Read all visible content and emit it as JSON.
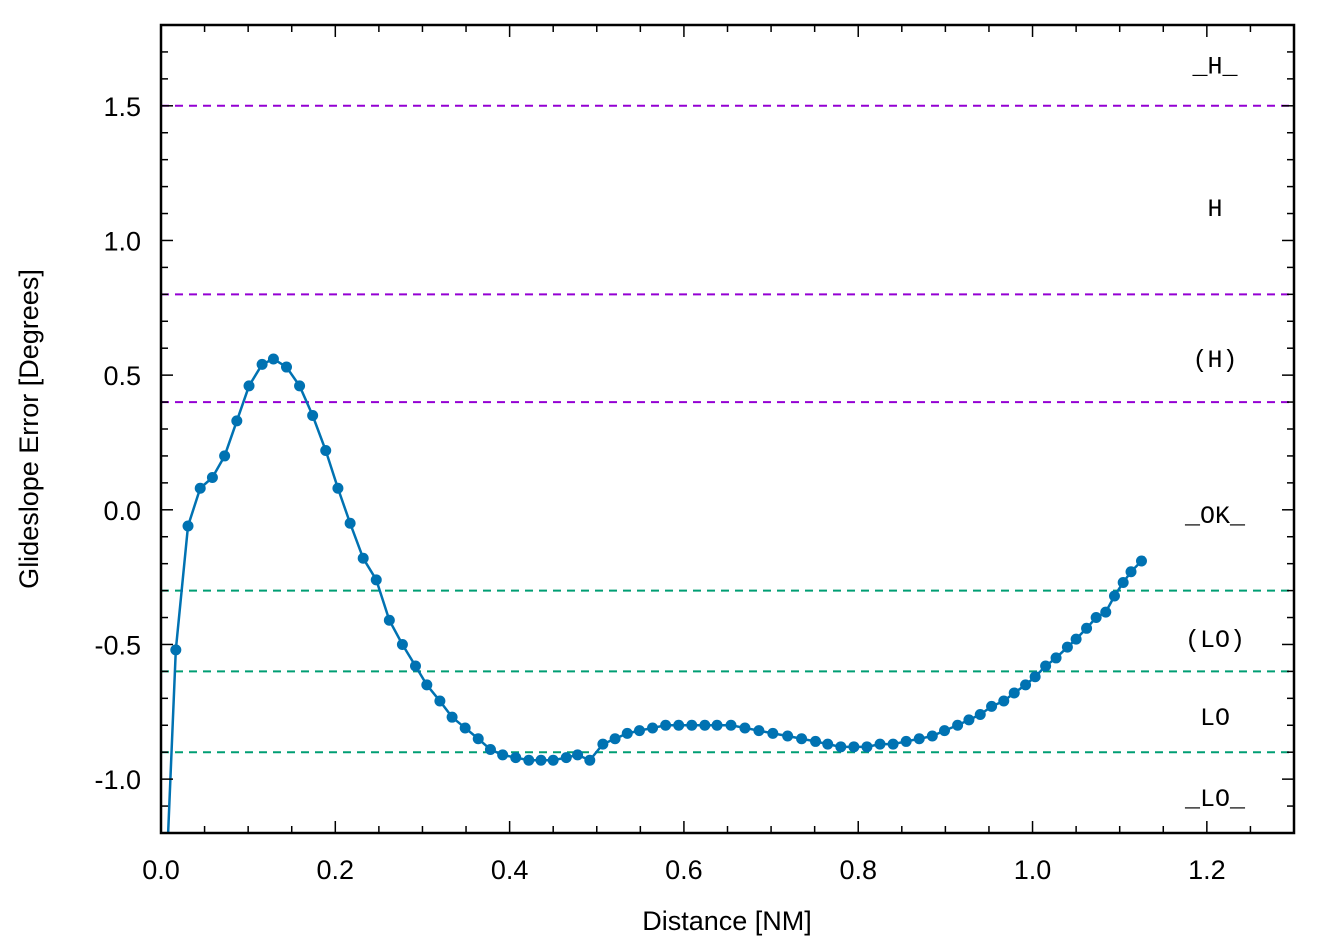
{
  "chart_data": {
    "type": "line",
    "title": "",
    "xlabel": "Distance [NM]",
    "ylabel": "Glideslope Error [Degrees]",
    "xlim": [
      0,
      1.3
    ],
    "ylim": [
      -1.2,
      1.8
    ],
    "xticks": [
      0.0,
      0.2,
      0.4,
      0.6,
      0.8,
      1.0,
      1.2
    ],
    "xtick_labels": [
      "0.0",
      "0.2",
      "0.4",
      "0.6",
      "0.8",
      "1.0",
      "1.2"
    ],
    "yticks": [
      -1.0,
      -0.5,
      0.0,
      0.5,
      1.0,
      1.5
    ],
    "ytick_labels": [
      "-1.0",
      "-0.5",
      "0.0",
      "0.5",
      "1.0",
      "1.5"
    ],
    "grid": false,
    "markers": true,
    "series_color": "#0072b2",
    "thresholds": [
      {
        "y": 1.5,
        "color": "#9400d3"
      },
      {
        "y": 0.8,
        "color": "#9400d3"
      },
      {
        "y": 0.4,
        "color": "#9400d3"
      },
      {
        "y": -0.3,
        "color": "#009e73"
      },
      {
        "y": -0.6,
        "color": "#009e73"
      },
      {
        "y": -0.9,
        "color": "#009e73"
      }
    ],
    "zone_labels": [
      {
        "text": "_H_",
        "y": 1.65
      },
      {
        "text": "H",
        "y": 1.12
      },
      {
        "text": "(H)",
        "y": 0.56
      },
      {
        "text": "_OK_",
        "y": -0.02
      },
      {
        "text": "(LO)",
        "y": -0.48
      },
      {
        "text": "LO",
        "y": -0.77
      },
      {
        "text": "_LO_",
        "y": -1.07
      }
    ],
    "series": [
      {
        "x": [
          0.003,
          0.017,
          0.031,
          0.045,
          0.059,
          0.073,
          0.087,
          0.101,
          0.116,
          0.129,
          0.144,
          0.159,
          0.174,
          0.189,
          0.203,
          0.217,
          0.232,
          0.247,
          0.262,
          0.277,
          0.292,
          0.305,
          0.32,
          0.334,
          0.349,
          0.364,
          0.378,
          0.392,
          0.407,
          0.422,
          0.436,
          0.45,
          0.465,
          0.478,
          0.492,
          0.507,
          0.521,
          0.535,
          0.549,
          0.564,
          0.579,
          0.594,
          0.609,
          0.624,
          0.638,
          0.654,
          0.67,
          0.686,
          0.702,
          0.719,
          0.735,
          0.751,
          0.765,
          0.78,
          0.795,
          0.81,
          0.825,
          0.84,
          0.855,
          0.87,
          0.885,
          0.899,
          0.914,
          0.927,
          0.94,
          0.953,
          0.967,
          0.979,
          0.992,
          1.003,
          1.015,
          1.027,
          1.04,
          1.05,
          1.062,
          1.073,
          1.084,
          1.094,
          1.104,
          1.113,
          1.125
        ],
        "y": [
          -1.6,
          -0.52,
          -0.06,
          0.08,
          0.12,
          0.2,
          0.33,
          0.46,
          0.54,
          0.56,
          0.53,
          0.46,
          0.35,
          0.22,
          0.08,
          -0.05,
          -0.18,
          -0.26,
          -0.41,
          -0.5,
          -0.58,
          -0.65,
          -0.71,
          -0.77,
          -0.81,
          -0.85,
          -0.89,
          -0.91,
          -0.92,
          -0.93,
          -0.93,
          -0.93,
          -0.92,
          -0.91,
          -0.93,
          -0.87,
          -0.85,
          -0.83,
          -0.82,
          -0.81,
          -0.8,
          -0.8,
          -0.8,
          -0.8,
          -0.8,
          -0.8,
          -0.81,
          -0.82,
          -0.83,
          -0.84,
          -0.85,
          -0.86,
          -0.87,
          -0.88,
          -0.88,
          -0.88,
          -0.87,
          -0.87,
          -0.86,
          -0.85,
          -0.84,
          -0.82,
          -0.8,
          -0.78,
          -0.76,
          -0.73,
          -0.71,
          -0.68,
          -0.65,
          -0.62,
          -0.58,
          -0.55,
          -0.51,
          -0.48,
          -0.44,
          -0.4,
          -0.38,
          -0.32,
          -0.27,
          -0.23,
          -0.19
        ]
      }
    ]
  }
}
